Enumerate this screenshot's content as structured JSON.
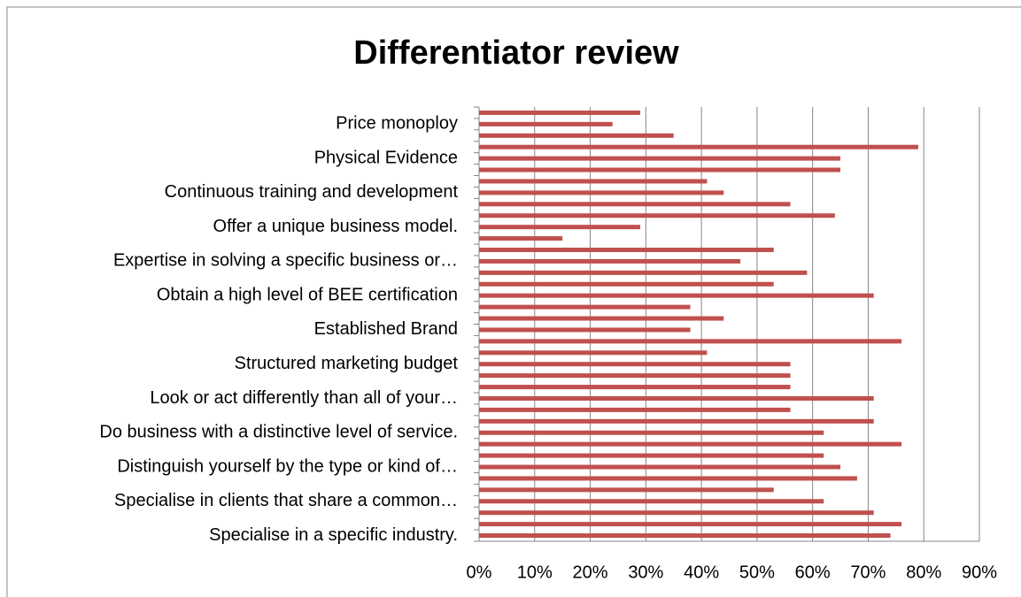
{
  "chart_data": {
    "type": "barh",
    "title": "Differentiator review",
    "categories": [
      "Specialise in a specific industry.",
      null,
      null,
      "Specialise in clients that share a common…",
      null,
      null,
      "Distinguish yourself by the type or kind of…",
      null,
      null,
      "Do business with a distinctive level of service.",
      null,
      null,
      "Look or act differently than all of your…",
      null,
      null,
      "Structured marketing budget",
      null,
      null,
      "Established Brand",
      null,
      null,
      "Obtain a high level of BEE certification",
      null,
      null,
      "Expertise in solving a specific business or…",
      null,
      null,
      "Offer a unique business model.",
      null,
      null,
      "Continuous training and development",
      null,
      null,
      "Physical Evidence",
      null,
      null,
      "Price monoploy",
      null
    ],
    "values": [
      74,
      76,
      71,
      62,
      53,
      68,
      65,
      62,
      76,
      62,
      71,
      56,
      71,
      56,
      56,
      56,
      41,
      76,
      38,
      44,
      38,
      71,
      53,
      59,
      47,
      53,
      15,
      29,
      64,
      56,
      44,
      41,
      65,
      65,
      79,
      35,
      24,
      29
    ],
    "color": "#c0504d",
    "xlim": [
      0,
      90
    ],
    "xticks": [
      {
        "value": 0,
        "label": "0%"
      },
      {
        "value": 10,
        "label": "10%"
      },
      {
        "value": 20,
        "label": "20%"
      },
      {
        "value": 30,
        "label": "30%"
      },
      {
        "value": 40,
        "label": "40%"
      },
      {
        "value": 50,
        "label": "50%"
      },
      {
        "value": 60,
        "label": "60%"
      },
      {
        "value": 70,
        "label": "70%"
      },
      {
        "value": 80,
        "label": "80%"
      },
      {
        "value": 90,
        "label": "90%"
      }
    ],
    "grid": true
  }
}
